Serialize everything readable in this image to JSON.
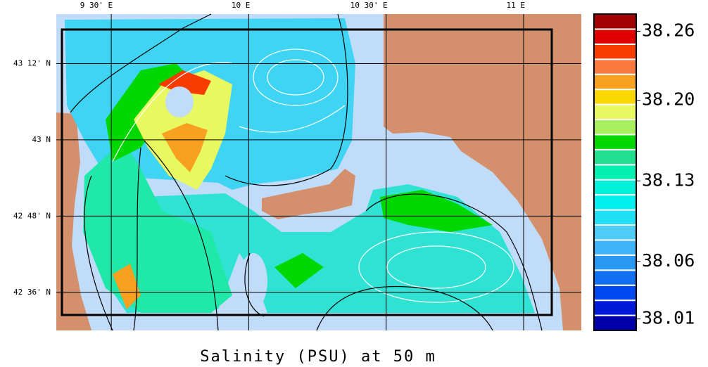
{
  "map": {
    "title": "Salinity (PSU) at 50 m",
    "lonlim": [
      9.3,
      11.21
    ],
    "latlim": [
      43.33,
      42.5
    ],
    "lon_ticks": [
      {
        "value": 9.5,
        "label": "9 30' E"
      },
      {
        "value": 10,
        "label": "10 E"
      },
      {
        "value": 10.5,
        "label": "10 30' E"
      },
      {
        "value": 11,
        "label": "11 E"
      }
    ],
    "lat_ticks": [
      {
        "value": 43.2,
        "label": "43 12' N"
      },
      {
        "value": 43,
        "label": "43 N"
      },
      {
        "value": 42.8,
        "label": "42 48' N"
      },
      {
        "value": 42.6,
        "label": "42 36' N"
      }
    ],
    "colorbar": {
      "clim": [
        38.0,
        38.275
      ],
      "ticks": [
        38.26,
        {
          "value": 38.2,
          "label": "38.20"
        },
        38.13,
        38.06,
        38.01
      ],
      "colors": [
        "#0000a8",
        "#0018d8",
        "#0048f0",
        "#1070f0",
        "#2898f0",
        "#40b4f8",
        "#50ccf8",
        "#20e0f8",
        "#00f0f0",
        "#00f0d8",
        "#00f0b0",
        "#20e090",
        "#00d800",
        "#a8f060",
        "#e8f860",
        "#f8d800",
        "#f8a020",
        "#f87840",
        "#f83c00",
        "#e00000",
        "#a00000"
      ]
    }
  }
}
